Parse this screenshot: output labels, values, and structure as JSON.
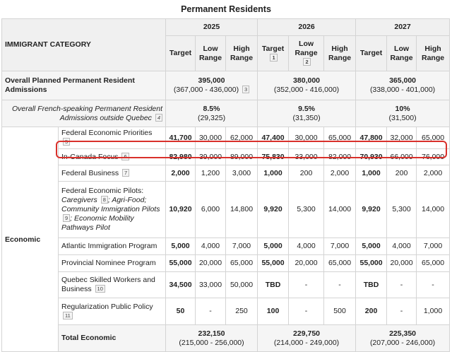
{
  "title": "Permanent Residents",
  "columns": {
    "category": "IMMIGRANT CATEGORY",
    "years": [
      "2025",
      "2026",
      "2027"
    ],
    "target": "Target",
    "low": "Low Range",
    "high": "High Range",
    "target_note_2026": "1",
    "low_note_2026": "2"
  },
  "overall": {
    "label": "Overall Planned Permanent Resident Admissions",
    "note": "3",
    "y2025": {
      "total": "395,000",
      "range": "(367,000 - 436,000)"
    },
    "y2026": {
      "total": "380,000",
      "range": "(352,000 - 416,000)"
    },
    "y2027": {
      "total": "365,000",
      "range": "(338,000 - 401,000)"
    }
  },
  "french": {
    "label": "Overall French-speaking Permanent Resident Admissions outside Quebec",
    "note": "4",
    "y2025": {
      "pct": "8.5%",
      "range": "(29,325)"
    },
    "y2026": {
      "pct": "9.5%",
      "range": "(31,350)"
    },
    "y2027": {
      "pct": "10%",
      "range": "(31,500)"
    }
  },
  "economic": {
    "group": "Economic",
    "rows": [
      {
        "label": "Federal Economic Priorities",
        "note": "5",
        "v": [
          "41,700",
          "30,000",
          "62,000",
          "47,400",
          "30,000",
          "65,000",
          "47,800",
          "32,000",
          "65,000"
        ]
      },
      {
        "label": "In-Canada Focus",
        "note": "6",
        "v": [
          "82,980",
          "39,000",
          "89,000",
          "75,830",
          "33,000",
          "82,000",
          "70,930",
          "66,000",
          "76,000"
        ]
      },
      {
        "label": "Federal Business",
        "note": "7",
        "v": [
          "2,000",
          "1,200",
          "3,000",
          "1,000",
          "200",
          "2,000",
          "1,000",
          "200",
          "2,000"
        ]
      },
      {
        "label": "Federal Economic Pilots:",
        "v": [
          "10,920",
          "6,000",
          "14,800",
          "9,920",
          "5,300",
          "14,000",
          "9,920",
          "5,300",
          "14,000"
        ]
      },
      {
        "label": "Atlantic Immigration Program",
        "v": [
          "5,000",
          "4,000",
          "7,000",
          "5,000",
          "4,000",
          "7,000",
          "5,000",
          "4,000",
          "7,000"
        ]
      },
      {
        "label": "Provincial Nominee Program",
        "v": [
          "55,000",
          "20,000",
          "65,000",
          "55,000",
          "20,000",
          "65,000",
          "55,000",
          "20,000",
          "65,000"
        ]
      },
      {
        "label": "Quebec Skilled Workers and Business",
        "note": "10",
        "v": [
          "34,500",
          "33,000",
          "50,000",
          "TBD",
          "-",
          "-",
          "TBD",
          "-",
          "-"
        ]
      },
      {
        "label": "Regularization Public Policy",
        "note": "11",
        "v": [
          "50",
          "-",
          "250",
          "100",
          "-",
          "500",
          "200",
          "-",
          "1,000"
        ]
      }
    ],
    "pilots": {
      "caregivers": "Caregivers",
      "caregivers_note": "8",
      "agri": "; Agri-Food;",
      "community": "Community Immigration Pilots",
      "community_note": "9",
      "mobility": "; Economic Mobility Pathways Pilot"
    },
    "total": {
      "label": "Total Economic",
      "y2025": {
        "total": "232,150",
        "range": "(215,000 - 256,000)"
      },
      "y2026": {
        "total": "229,750",
        "range": "(214,000 - 249,000)"
      },
      "y2027": {
        "total": "225,350",
        "range": "(207,000 - 246,000)"
      }
    }
  }
}
